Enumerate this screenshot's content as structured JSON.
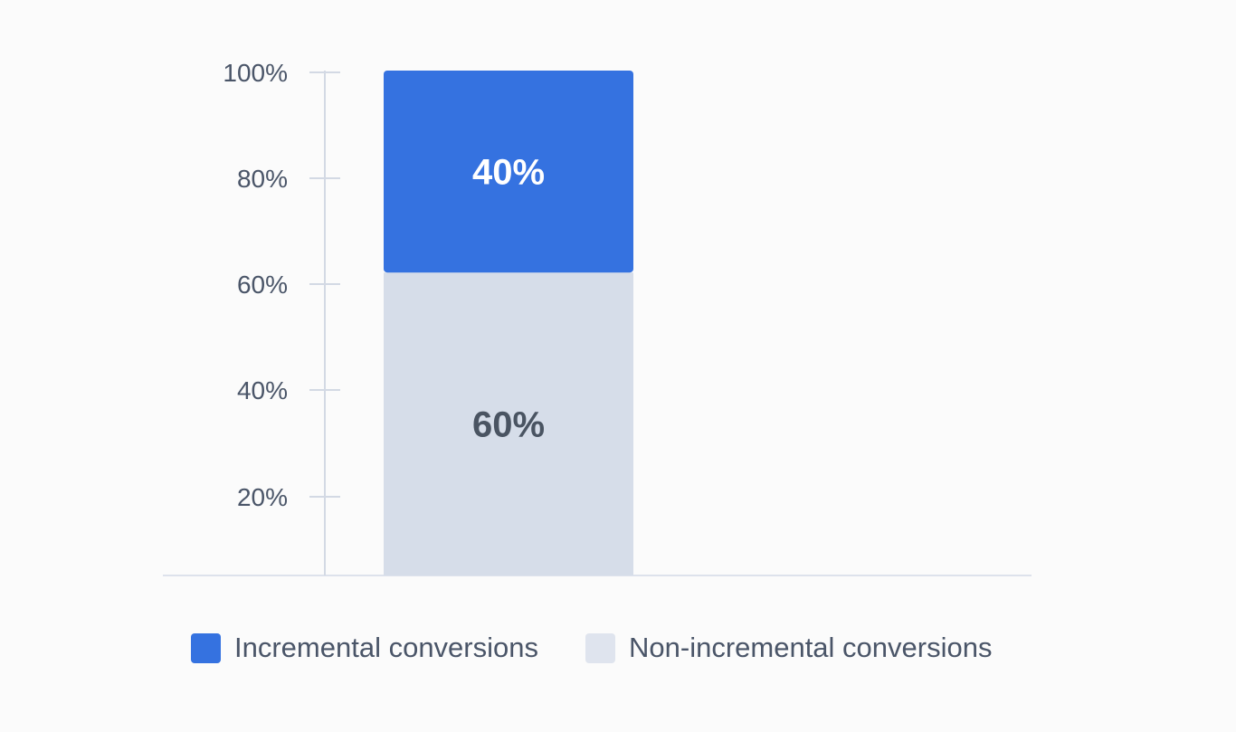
{
  "chart_data": {
    "type": "bar",
    "stacked": true,
    "categories": [
      ""
    ],
    "series": [
      {
        "name": "Non-incremental conversions",
        "values": [
          60
        ],
        "label": "60%",
        "color": "#d6dde9"
      },
      {
        "name": "Incremental conversions",
        "values": [
          40
        ],
        "label": "40%",
        "color": "#3572e0"
      }
    ],
    "ylim": [
      0,
      100
    ],
    "yticks": [
      20,
      40,
      60,
      80,
      100
    ],
    "ytick_labels": [
      "20%",
      "40%",
      "60%",
      "80%",
      "100%"
    ],
    "grid": false,
    "legend_position": "bottom",
    "legend": [
      "Incremental conversions",
      "Non-incremental conversions"
    ]
  }
}
